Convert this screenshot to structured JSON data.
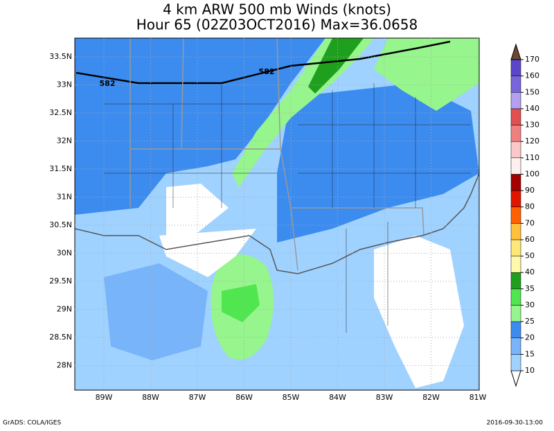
{
  "title": [
    "4 km ARW 500 mb Winds (knots)",
    "Hour 65 (02Z03OCT2016) Max=36.0658"
  ],
  "lat_labels": [
    "33.5N",
    "33N",
    "32.5N",
    "32N",
    "31.5N",
    "31N",
    "30.5N",
    "30N",
    "29.5N",
    "29N",
    "28.5N",
    "28N"
  ],
  "lon_labels": [
    "89W",
    "88W",
    "87W",
    "86W",
    "85W",
    "84W",
    "83W",
    "82W",
    "81W"
  ],
  "contour_labels": [
    "582",
    "582"
  ],
  "colorbar": {
    "levels": [
      10,
      15,
      20,
      25,
      30,
      35,
      40,
      50,
      60,
      70,
      80,
      90,
      100,
      110,
      120,
      130,
      140,
      150,
      160,
      170
    ],
    "colors": [
      "#a0d2ff",
      "#78b4fa",
      "#3c8cf0",
      "#96f58c",
      "#50e650",
      "#1ea01e",
      "#fffaaa",
      "#ffe878",
      "#ffc03c",
      "#ff6000",
      "#e11400",
      "#a50000",
      "#fff0f0",
      "#fac8c8",
      "#f08080",
      "#e05050",
      "#b4a0f0",
      "#7864dc",
      "#5a46c8",
      "#dcb4a0",
      "#c89682",
      "#a07060",
      "#6e4632"
    ]
  },
  "footer_left": "GrADS: COLA/IGES",
  "footer_right": "2016-09-30-13:00"
}
